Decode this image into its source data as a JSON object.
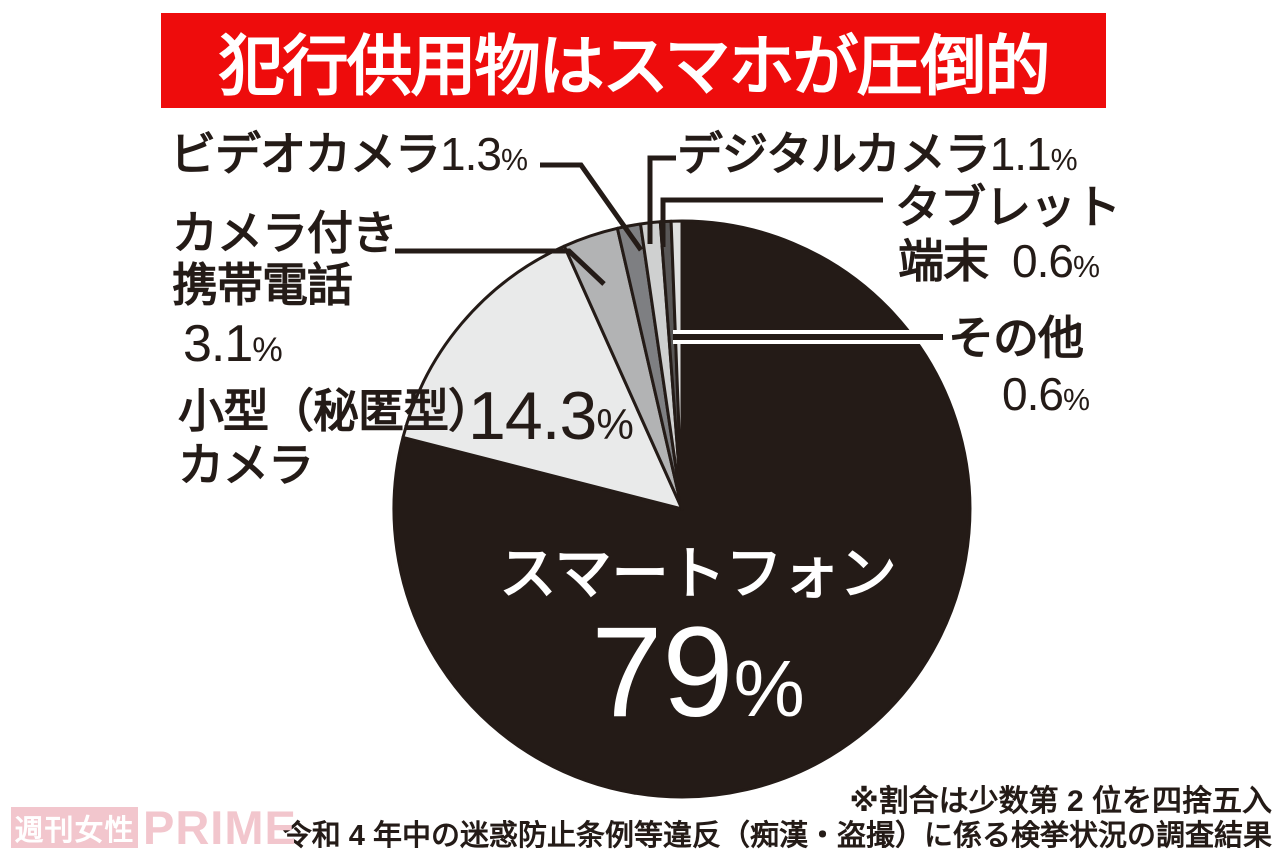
{
  "title": "犯行供用物はスマホが圧倒的",
  "chart_data": {
    "type": "pie",
    "title": "犯行供用物はスマホが圧倒的",
    "direction": "clockwise",
    "start_angle": "12-oclock",
    "percent_sign": "%",
    "slices": [
      {
        "label": "スマートフォン",
        "label_lines": [
          "スマートフォン"
        ],
        "value": 79,
        "value_str": "79",
        "color": "#241b17"
      },
      {
        "label": "小型（秘匿型）カメラ",
        "label_lines": [
          "小型（秘匿型）",
          "カメラ"
        ],
        "value": 14.3,
        "value_str": "14.3",
        "color": "#e9eaea"
      },
      {
        "label": "カメラ付き携帯電話",
        "label_lines": [
          "カメラ付き",
          "携帯電話"
        ],
        "value": 3.1,
        "value_str": "3.1",
        "color": "#b2b3b4"
      },
      {
        "label": "ビデオカメラ",
        "label_lines": [
          "ビデオカメラ"
        ],
        "value": 1.3,
        "value_str": "1.3",
        "color": "#7e7f82"
      },
      {
        "label": "デジタルカメラ",
        "label_lines": [
          "デジタルカメラ"
        ],
        "value": 1.1,
        "value_str": "1.1",
        "color": "#cfd0d0"
      },
      {
        "label": "タブレット端末",
        "label_lines": [
          "タブレット",
          "端末"
        ],
        "value": 0.6,
        "value_str": "0.6",
        "color": "#595757"
      },
      {
        "label": "その他",
        "label_lines": [
          "その他"
        ],
        "value": 0.6,
        "value_str": "0.6",
        "color": "#dfe0e0"
      }
    ],
    "notes": [
      "※割合は少数第 2 位を四捨五入",
      "令和 4 年中の迷惑防止条例等違反（痴漢・盗撮）に係る検挙状況の調査結果"
    ]
  },
  "notes": {
    "rounding": "※割合は少数第 2 位を四捨五入",
    "source": "令和 4 年中の迷惑防止条例等違反（痴漢・盗撮）に係る検挙状況の調査結果"
  },
  "watermark": {
    "box_text": "週刊女性",
    "suffix": "PRIME"
  },
  "colors": {
    "banner_bg": "#ee0c0c",
    "ink": "#241b17",
    "watermark_pink": "#f2c6cd",
    "white": "#ffffff"
  }
}
